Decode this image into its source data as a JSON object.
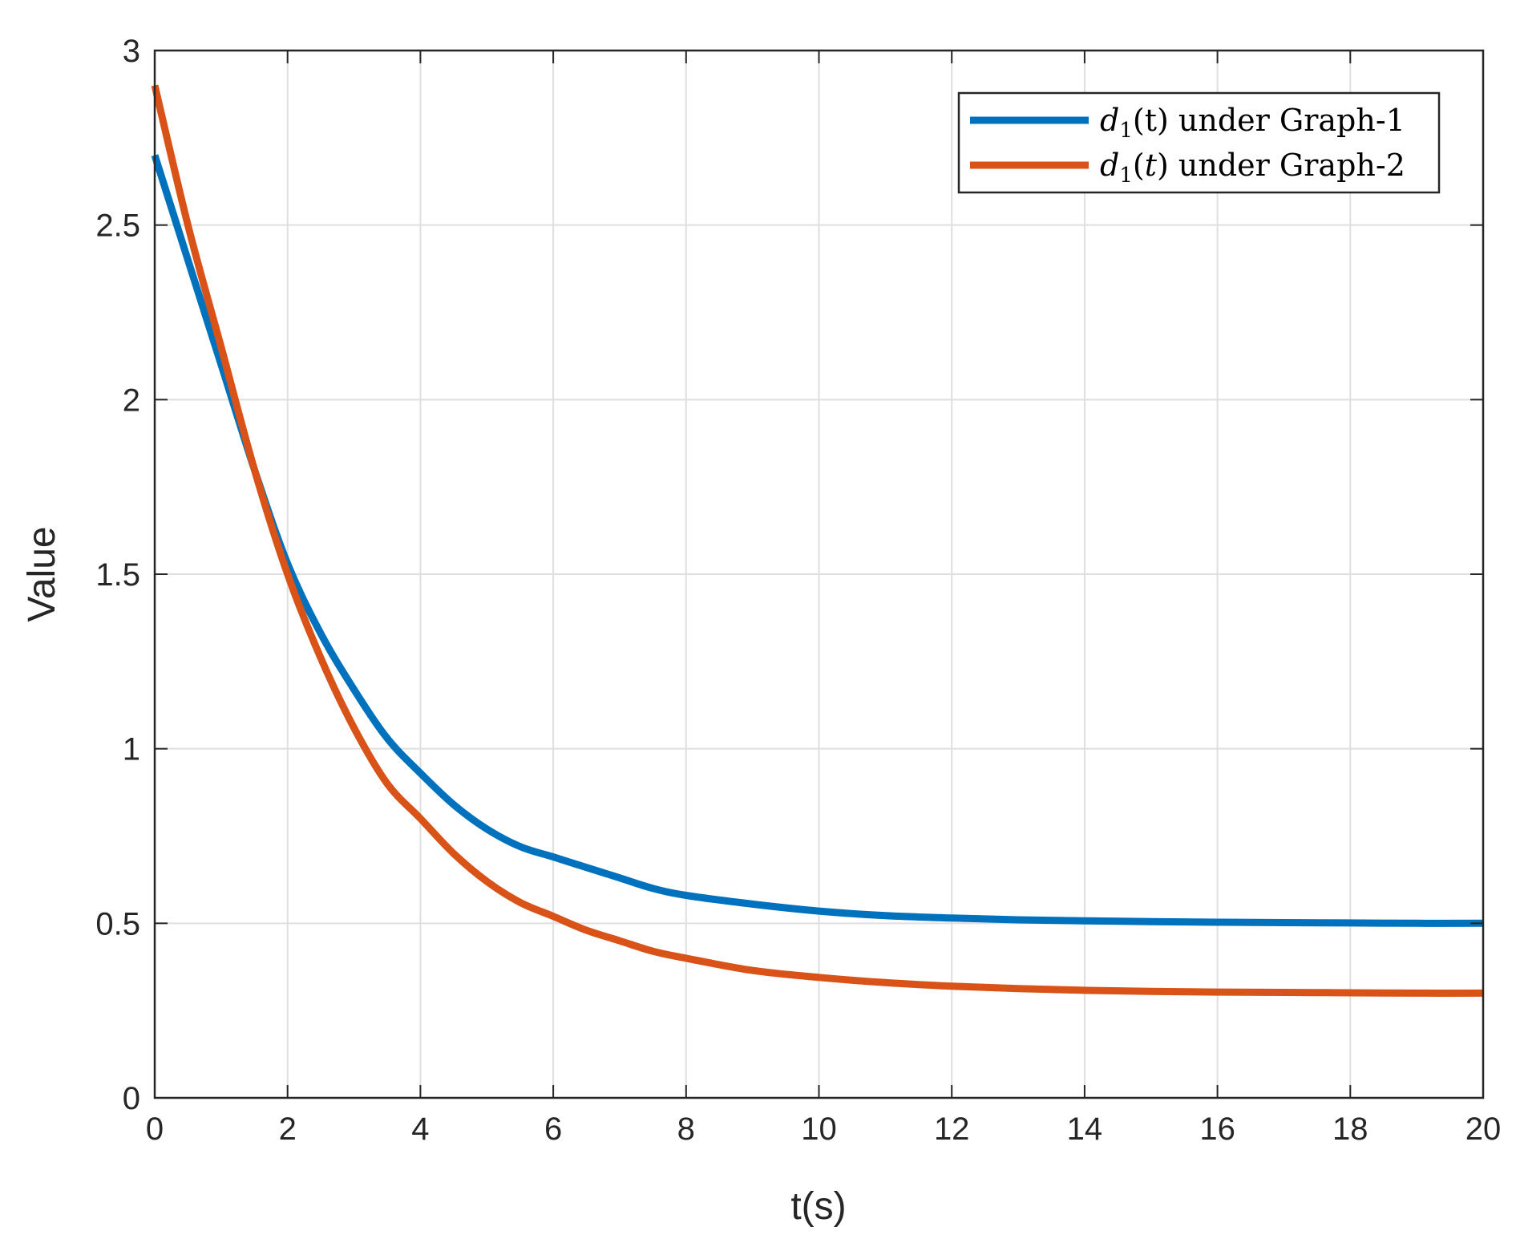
{
  "chart_data": {
    "type": "line",
    "xlabel": "t(s)",
    "ylabel": "Value",
    "xlim": [
      0,
      20
    ],
    "ylim": [
      0,
      3
    ],
    "xticks": [
      0,
      2,
      4,
      6,
      8,
      10,
      12,
      14,
      16,
      18,
      20
    ],
    "yticks": [
      0,
      0.5,
      1,
      1.5,
      2,
      2.5,
      3
    ],
    "xtick_labels": [
      "0",
      "2",
      "4",
      "6",
      "8",
      "10",
      "12",
      "14",
      "16",
      "18",
      "20"
    ],
    "ytick_labels": [
      "0",
      "0.5",
      "1",
      "1.5",
      "2",
      "2.5",
      "3"
    ],
    "grid": true,
    "legend_position": "top-right",
    "series": [
      {
        "name": "d1(t) under Graph-1",
        "legend": {
          "var": "d",
          "sub": "1",
          "arg": "(t)",
          "arg_italic": false,
          "rest": " under Graph-1"
        },
        "color": "#0072BD",
        "x": [
          0,
          0.5,
          1,
          1.5,
          2,
          2.5,
          3,
          3.5,
          4,
          4.5,
          5,
          5.5,
          6,
          6.5,
          7,
          7.5,
          8,
          9,
          10,
          11,
          12,
          13,
          14,
          15,
          16,
          17,
          18,
          19,
          20
        ],
        "y": [
          2.7,
          2.4,
          2.1,
          1.8,
          1.53,
          1.33,
          1.17,
          1.03,
          0.93,
          0.84,
          0.77,
          0.72,
          0.69,
          0.66,
          0.63,
          0.6,
          0.58,
          0.555,
          0.535,
          0.522,
          0.515,
          0.51,
          0.507,
          0.505,
          0.503,
          0.502,
          0.501,
          0.5,
          0.5
        ]
      },
      {
        "name": "d1(t) under Graph-2",
        "legend": {
          "var": "d",
          "sub": "1",
          "arg": "(t)",
          "arg_italic": true,
          "rest": " under Graph-2"
        },
        "color": "#D95319",
        "x": [
          0,
          0.5,
          1,
          1.5,
          2,
          2.5,
          3,
          3.5,
          4,
          4.5,
          5,
          5.5,
          6,
          6.5,
          7,
          7.5,
          8,
          9,
          10,
          11,
          12,
          13,
          14,
          15,
          16,
          17,
          18,
          19,
          20
        ],
        "y": [
          2.9,
          2.5,
          2.15,
          1.8,
          1.5,
          1.26,
          1.06,
          0.9,
          0.8,
          0.7,
          0.62,
          0.56,
          0.52,
          0.48,
          0.45,
          0.42,
          0.4,
          0.365,
          0.345,
          0.33,
          0.32,
          0.313,
          0.308,
          0.305,
          0.303,
          0.302,
          0.301,
          0.3,
          0.3
        ]
      }
    ]
  }
}
